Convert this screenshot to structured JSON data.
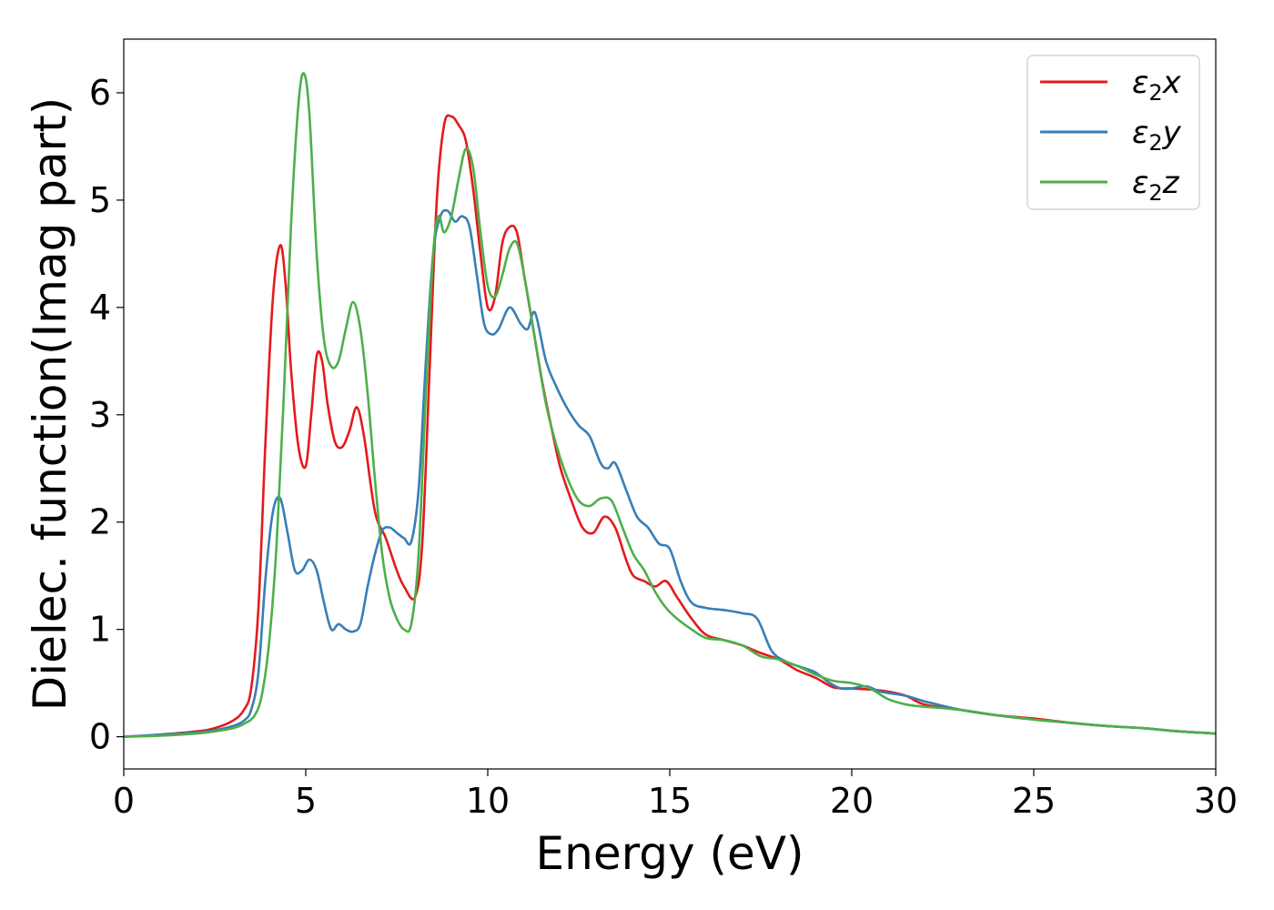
{
  "chart_data": {
    "type": "line",
    "title": "",
    "xlabel": "Energy (eV)",
    "ylabel": "Dielec. function(Imag part)",
    "xlim": [
      0,
      30
    ],
    "ylim": [
      -0.3,
      6.5
    ],
    "xticks": [
      0,
      5,
      10,
      15,
      20,
      25,
      30
    ],
    "yticks": [
      0,
      1,
      2,
      3,
      4,
      5,
      6
    ],
    "grid": false,
    "legend": "top-right",
    "series": [
      {
        "name": "ε₂x",
        "label_main": "ε",
        "label_sub": "2",
        "label_suffix": "x",
        "color": "#e41a1c",
        "x": [
          0,
          1,
          2,
          2.5,
          3,
          3.3,
          3.5,
          3.7,
          3.9,
          4.1,
          4.3,
          4.45,
          4.6,
          4.8,
          5.0,
          5.15,
          5.3,
          5.45,
          5.6,
          5.8,
          6.0,
          6.2,
          6.4,
          6.6,
          6.9,
          7.2,
          7.5,
          7.7,
          8.0,
          8.2,
          8.4,
          8.6,
          8.8,
          9.0,
          9.2,
          9.4,
          9.6,
          9.8,
          10.0,
          10.2,
          10.4,
          10.6,
          10.8,
          11.0,
          11.2,
          11.5,
          11.8,
          12.0,
          12.3,
          12.6,
          12.9,
          13.2,
          13.5,
          13.8,
          14.0,
          14.3,
          14.6,
          14.9,
          15.2,
          15.6,
          16.0,
          16.5,
          17.0,
          17.5,
          18.0,
          18.5,
          19.0,
          19.5,
          20.0,
          20.5,
          21.0,
          21.5,
          22.0,
          23.0,
          24.0,
          25.0,
          26.0,
          27.0,
          28.0,
          29.0,
          30.0
        ],
        "y": [
          0.0,
          0.02,
          0.05,
          0.08,
          0.15,
          0.25,
          0.45,
          1.2,
          2.8,
          4.1,
          4.58,
          4.2,
          3.4,
          2.7,
          2.52,
          3.0,
          3.55,
          3.5,
          3.1,
          2.75,
          2.7,
          2.85,
          3.07,
          2.8,
          2.1,
          1.85,
          1.55,
          1.4,
          1.3,
          1.8,
          3.4,
          5.0,
          5.7,
          5.78,
          5.7,
          5.55,
          5.1,
          4.5,
          4.0,
          4.1,
          4.6,
          4.75,
          4.7,
          4.3,
          3.9,
          3.3,
          2.8,
          2.5,
          2.2,
          1.95,
          1.9,
          2.05,
          1.95,
          1.65,
          1.5,
          1.45,
          1.4,
          1.45,
          1.3,
          1.1,
          0.95,
          0.9,
          0.85,
          0.78,
          0.72,
          0.62,
          0.55,
          0.46,
          0.45,
          0.44,
          0.42,
          0.38,
          0.3,
          0.25,
          0.2,
          0.17,
          0.13,
          0.1,
          0.08,
          0.05,
          0.03
        ]
      },
      {
        "name": "ε₂y",
        "label_main": "ε",
        "label_sub": "2",
        "label_suffix": "y",
        "color": "#377eb8",
        "x": [
          0,
          1,
          2,
          2.5,
          3,
          3.3,
          3.5,
          3.7,
          3.9,
          4.1,
          4.3,
          4.5,
          4.7,
          4.9,
          5.1,
          5.3,
          5.5,
          5.7,
          5.9,
          6.1,
          6.3,
          6.5,
          6.7,
          6.9,
          7.1,
          7.3,
          7.5,
          7.7,
          7.9,
          8.1,
          8.3,
          8.5,
          8.7,
          8.9,
          9.1,
          9.3,
          9.5,
          9.7,
          9.9,
          10.1,
          10.3,
          10.6,
          10.9,
          11.1,
          11.3,
          11.6,
          11.9,
          12.2,
          12.5,
          12.8,
          13.1,
          13.3,
          13.5,
          13.8,
          14.1,
          14.4,
          14.7,
          15.0,
          15.3,
          15.6,
          16.0,
          16.5,
          17.0,
          17.4,
          17.8,
          18.2,
          18.6,
          19.0,
          19.4,
          19.7,
          20.0,
          20.4,
          20.8,
          21.5,
          22.0,
          23.0,
          24.0,
          25.0,
          26.0,
          27.0,
          28.0,
          29.0,
          30.0
        ],
        "y": [
          0.0,
          0.02,
          0.04,
          0.06,
          0.1,
          0.15,
          0.25,
          0.6,
          1.5,
          2.1,
          2.22,
          1.9,
          1.55,
          1.55,
          1.65,
          1.55,
          1.25,
          1.0,
          1.05,
          1.0,
          0.98,
          1.05,
          1.4,
          1.7,
          1.92,
          1.95,
          1.9,
          1.85,
          1.82,
          2.3,
          3.5,
          4.5,
          4.85,
          4.9,
          4.8,
          4.85,
          4.75,
          4.3,
          3.85,
          3.75,
          3.8,
          4.0,
          3.85,
          3.8,
          3.95,
          3.5,
          3.25,
          3.05,
          2.9,
          2.8,
          2.55,
          2.5,
          2.55,
          2.3,
          2.05,
          1.95,
          1.8,
          1.75,
          1.45,
          1.25,
          1.2,
          1.18,
          1.15,
          1.1,
          0.8,
          0.7,
          0.65,
          0.6,
          0.5,
          0.45,
          0.45,
          0.47,
          0.42,
          0.38,
          0.33,
          0.25,
          0.2,
          0.16,
          0.13,
          0.1,
          0.08,
          0.05,
          0.03
        ]
      },
      {
        "name": "ε₂z",
        "label_main": "ε",
        "label_sub": "2",
        "label_suffix": "z",
        "color": "#4daf4a",
        "x": [
          0,
          1,
          2,
          2.5,
          3,
          3.3,
          3.6,
          3.8,
          4.0,
          4.2,
          4.4,
          4.6,
          4.8,
          4.95,
          5.1,
          5.3,
          5.5,
          5.7,
          5.9,
          6.1,
          6.3,
          6.5,
          6.7,
          6.9,
          7.1,
          7.3,
          7.5,
          7.7,
          7.9,
          8.1,
          8.3,
          8.5,
          8.65,
          8.8,
          9.0,
          9.2,
          9.4,
          9.6,
          9.8,
          10.0,
          10.2,
          10.4,
          10.6,
          10.8,
          11.0,
          11.3,
          11.6,
          11.9,
          12.2,
          12.5,
          12.8,
          13.1,
          13.4,
          13.7,
          14.0,
          14.3,
          14.6,
          14.9,
          15.2,
          15.6,
          16.0,
          16.5,
          17.0,
          17.5,
          18.0,
          18.5,
          19.0,
          19.5,
          20.0,
          20.5,
          21.0,
          21.5,
          22.0,
          23.0,
          24.0,
          25.0,
          26.0,
          27.0,
          28.0,
          29.0,
          30.0
        ],
        "y": [
          0.0,
          0.01,
          0.03,
          0.05,
          0.08,
          0.12,
          0.2,
          0.4,
          0.9,
          1.8,
          3.2,
          4.8,
          5.9,
          6.18,
          5.8,
          4.5,
          3.7,
          3.45,
          3.5,
          3.8,
          4.05,
          3.8,
          3.2,
          2.4,
          1.7,
          1.3,
          1.1,
          1.0,
          1.05,
          1.7,
          3.2,
          4.5,
          4.85,
          4.7,
          4.85,
          5.2,
          5.48,
          5.3,
          4.7,
          4.2,
          4.1,
          4.3,
          4.55,
          4.6,
          4.3,
          3.7,
          3.1,
          2.7,
          2.4,
          2.2,
          2.15,
          2.22,
          2.2,
          1.95,
          1.7,
          1.55,
          1.35,
          1.2,
          1.1,
          1.0,
          0.92,
          0.9,
          0.85,
          0.75,
          0.72,
          0.66,
          0.58,
          0.52,
          0.5,
          0.45,
          0.35,
          0.3,
          0.28,
          0.25,
          0.2,
          0.16,
          0.13,
          0.1,
          0.08,
          0.05,
          0.03
        ]
      }
    ]
  }
}
